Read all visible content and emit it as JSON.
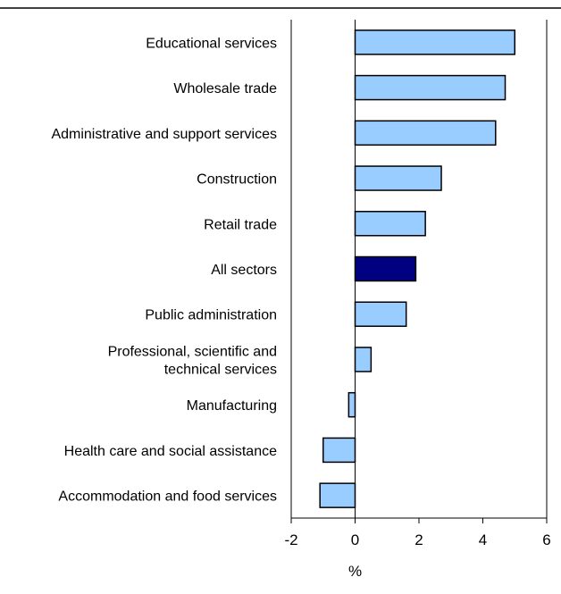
{
  "chart_data": {
    "type": "bar",
    "orientation": "horizontal",
    "categories": [
      [
        "Educational services"
      ],
      [
        "Wholesale trade"
      ],
      [
        "Administrative and support services"
      ],
      [
        "Construction"
      ],
      [
        "Retail trade"
      ],
      [
        "All sectors"
      ],
      [
        "Public administration"
      ],
      [
        "Professional, scientific and",
        "technical services"
      ],
      [
        "Manufacturing"
      ],
      [
        "Health care and social assistance"
      ],
      [
        "Accommodation and food services"
      ]
    ],
    "values": [
      5.0,
      4.7,
      4.4,
      2.7,
      2.2,
      1.9,
      1.6,
      0.5,
      -0.2,
      -1.0,
      -1.1
    ],
    "highlight_index": 5,
    "xlim": [
      -2,
      6
    ],
    "xticks": [
      -2,
      0,
      2,
      4,
      6
    ],
    "xlabel": "%",
    "title": "",
    "grid": false,
    "colors": {
      "bar": "#99ccff",
      "highlight": "#000080",
      "bar_stroke": "#000000",
      "axis": "#000000"
    }
  }
}
